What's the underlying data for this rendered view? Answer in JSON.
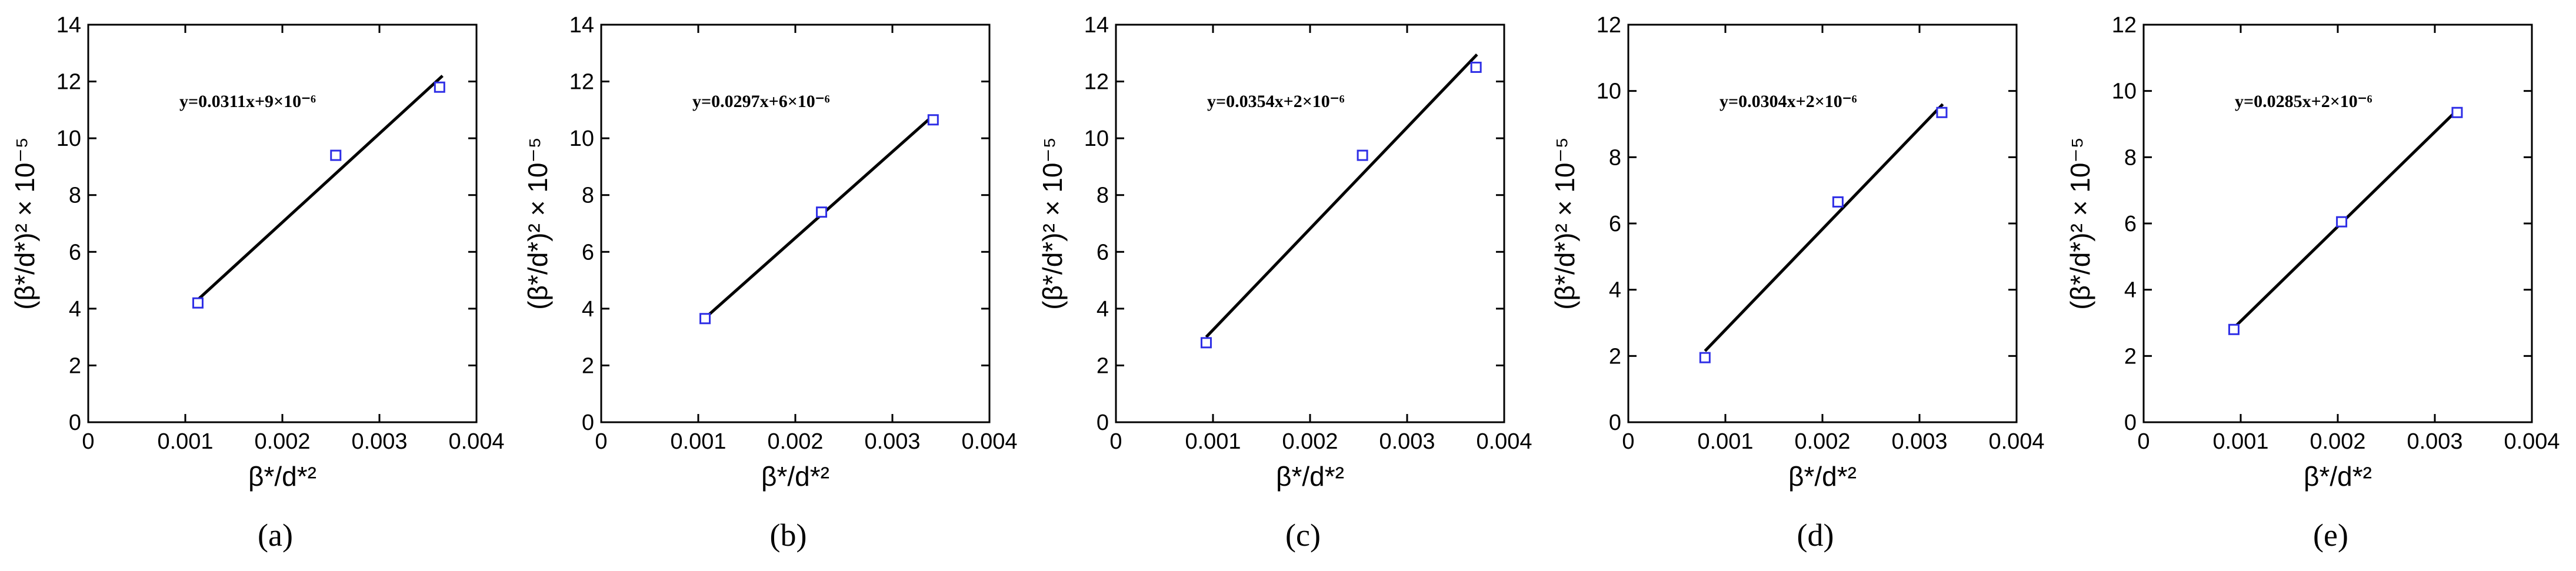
{
  "chart_data": [
    {
      "type": "scatter",
      "panel_label": "(a)",
      "panel_letter": "a",
      "xlabel": "β*/d*²",
      "ylabel": "(β*/d*)² × 10⁻⁵",
      "xlim": [
        0,
        0.004
      ],
      "ylim": [
        0,
        14
      ],
      "xticks": [
        "0",
        "0.001",
        "0.002",
        "0.003",
        "0.004"
      ],
      "yticks": [
        "0",
        "2",
        "4",
        "6",
        "8",
        "10",
        "12",
        "14"
      ],
      "fit_equation": "y=0.0311x+9×10⁻⁶",
      "fit_line": {
        "x": [
          0.00114,
          0.00365
        ],
        "y": [
          4.35,
          12.2
        ]
      },
      "points": {
        "x": [
          0.00113,
          0.00255,
          0.00362
        ],
        "y": [
          4.2,
          9.4,
          11.8
        ]
      },
      "grid": false
    },
    {
      "type": "scatter",
      "panel_label": "(b)",
      "panel_letter": "b",
      "xlabel": "β*/d*²",
      "ylabel": "(β*/d*)² × 10⁻⁵",
      "xlim": [
        0,
        0.004
      ],
      "ylim": [
        0,
        14
      ],
      "xticks": [
        "0",
        "0.001",
        "0.002",
        "0.003",
        "0.004"
      ],
      "yticks": [
        "0",
        "2",
        "4",
        "6",
        "8",
        "10",
        "12",
        "14"
      ],
      "fit_equation": "y=0.0297x+6×10⁻⁶",
      "fit_line": {
        "x": [
          0.00108,
          0.00342
        ],
        "y": [
          3.7,
          10.8
        ]
      },
      "points": {
        "x": [
          0.00107,
          0.00227,
          0.00342
        ],
        "y": [
          3.65,
          7.4,
          10.65
        ]
      },
      "grid": false
    },
    {
      "type": "scatter",
      "panel_label": "(c)",
      "panel_letter": "c",
      "xlabel": "β*/d*²",
      "ylabel": "(β*/d*)² × 10⁻⁵",
      "xlim": [
        0,
        0.004
      ],
      "ylim": [
        0,
        14
      ],
      "xticks": [
        "0",
        "0.001",
        "0.002",
        "0.003",
        "0.004"
      ],
      "yticks": [
        "0",
        "2",
        "4",
        "6",
        "8",
        "10",
        "12",
        "14"
      ],
      "fit_equation": "y=0.0354x+2×10⁻⁶",
      "fit_line": {
        "x": [
          0.00093,
          0.00372
        ],
        "y": [
          3.0,
          12.95
        ]
      },
      "points": {
        "x": [
          0.00093,
          0.00254,
          0.00371
        ],
        "y": [
          2.8,
          9.4,
          12.5
        ]
      },
      "grid": false
    },
    {
      "type": "scatter",
      "panel_label": "(d)",
      "panel_letter": "d",
      "xlabel": "β*/d*²",
      "ylabel": "(β*/d*)² × 10⁻⁵",
      "xlim": [
        0,
        0.004
      ],
      "ylim": [
        0,
        12
      ],
      "xticks": [
        "0",
        "0.001",
        "0.002",
        "0.003",
        "0.004"
      ],
      "yticks": [
        "0",
        "2",
        "4",
        "6",
        "8",
        "10",
        "12"
      ],
      "fit_equation": "y=0.0304x+2×10⁻⁶",
      "fit_line": {
        "x": [
          0.00079,
          0.00324
        ],
        "y": [
          2.15,
          9.6
        ]
      },
      "points": {
        "x": [
          0.00079,
          0.00216,
          0.00323
        ],
        "y": [
          1.95,
          6.65,
          9.35
        ]
      },
      "grid": false
    },
    {
      "type": "scatter",
      "panel_label": "(e)",
      "panel_letter": "e",
      "xlabel": "β*/d*²",
      "ylabel": "(β*/d*)² × 10⁻⁵",
      "xlim": [
        0,
        0.004
      ],
      "ylim": [
        0,
        12
      ],
      "xticks": [
        "0",
        "0.001",
        "0.002",
        "0.003",
        "0.004"
      ],
      "yticks": [
        "0",
        "2",
        "4",
        "6",
        "8",
        "10",
        "12"
      ],
      "fit_equation": "y=0.0285x+2×10⁻⁶",
      "fit_line": {
        "x": [
          0.00093,
          0.00324
        ],
        "y": [
          2.85,
          9.45
        ]
      },
      "points": {
        "x": [
          0.00093,
          0.00204,
          0.00323
        ],
        "y": [
          2.8,
          6.05,
          9.35
        ]
      },
      "grid": false
    }
  ],
  "colors": {
    "axis": "#000000",
    "fit_line": "#000000",
    "marker": "#2e2ee6"
  }
}
